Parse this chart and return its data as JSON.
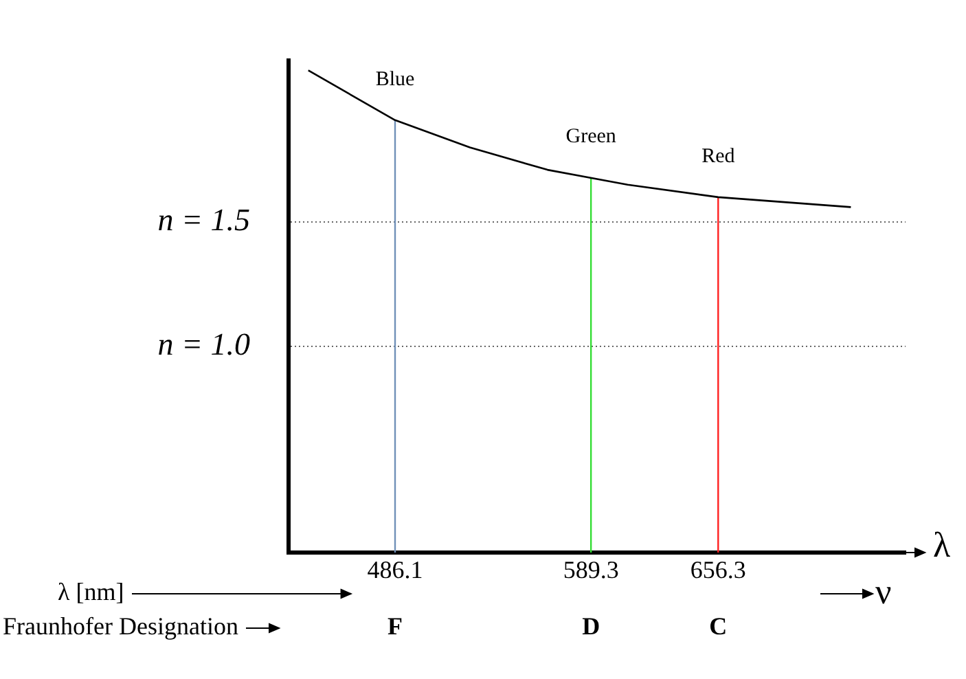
{
  "chart_data": {
    "type": "line",
    "xlabel": "λ",
    "x": [
      440.4,
      486.1,
      525.5,
      566.4,
      608.6,
      656.3,
      726.2
    ],
    "series": [
      {
        "values": [
          2.11,
          1.91,
          1.8,
          1.71,
          1.65,
          1.6,
          1.56
        ],
        "color": "#000000"
      },
      {
        "name": "Blue",
        "x": [
          486.1,
          486.1
        ],
        "values": [
          0.17,
          1.91
        ],
        "color": "#7090b8"
      },
      {
        "name": "Green",
        "x": [
          589.3,
          589.3
        ],
        "values": [
          0.17,
          1.68
        ],
        "color": "#33dd33"
      },
      {
        "name": "Red",
        "x": [
          656.3,
          656.3
        ],
        "values": [
          0.17,
          1.6
        ],
        "color": "#ff2020"
      }
    ],
    "xlim": [
      430,
      755
    ],
    "xticks": [
      486.1,
      589.3,
      656.3
    ],
    "ylim": [
      0.17,
      2.15
    ],
    "yticks": [
      {
        "value": 1.0,
        "label": "n = 1.0"
      },
      {
        "value": 1.5,
        "label": "n = 1.5"
      }
    ],
    "grid": "y",
    "line_style": "solid",
    "marker": "none",
    "legend": false,
    "annotations": [
      "λ [nm]",
      "Fraunhofer Designation",
      "F",
      "D",
      "C",
      "ν"
    ]
  }
}
